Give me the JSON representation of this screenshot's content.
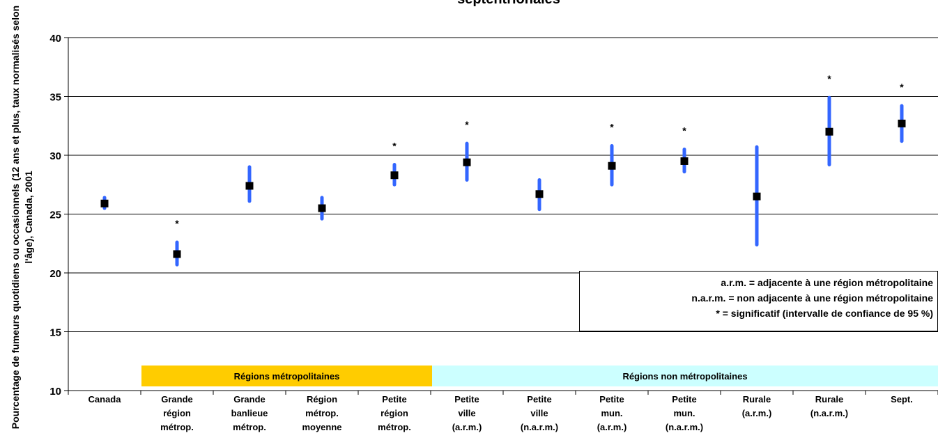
{
  "title": "septentrionales",
  "y_axis_label": "Pourcentage de fumeurs quotidiens ou occasionnels (12 ans et plus, taux normalisés selon l'âge), Canada, 2001",
  "legend_notes": [
    "a.r.m. = adjacente à une région métropolitaine",
    "n.a.r.m. = non adjacente à une région métropolitaine",
    "* = significatif (intervalle de confiance de 95 %)"
  ],
  "bands": [
    {
      "label": "Régions métropolitaines",
      "color": "#FFCC00"
    },
    {
      "label": "Régions non métropolitaines",
      "color": "#CCFFFF"
    }
  ],
  "colors": {
    "error_bar": "#3366FF",
    "marker": "#000000",
    "gridline": "#000000"
  },
  "chart_data": {
    "type": "scatter",
    "x_tick_labels": [
      [
        "Canada"
      ],
      [
        "Grande",
        "région",
        "métrop."
      ],
      [
        "Grande",
        "banlieue",
        "métrop."
      ],
      [
        "Région",
        "métrop.",
        "moyenne"
      ],
      [
        "Petite",
        "région",
        "métrop."
      ],
      [
        "Petite",
        "ville",
        "(a.r.m.)"
      ],
      [
        "Petite",
        "ville",
        "(n.a.r.m.)"
      ],
      [
        "Petite",
        "mun.",
        "(a.r.m.)"
      ],
      [
        "Petite",
        "mun.",
        "(n.a.r.m.)"
      ],
      [
        "Rurale",
        "(a.r.m.)"
      ],
      [
        "Rurale",
        "(n.a.r.m.)"
      ],
      [
        "Sept."
      ]
    ],
    "values": [
      25.9,
      21.6,
      27.4,
      25.5,
      28.3,
      29.4,
      26.7,
      29.1,
      29.5,
      26.5,
      32.0,
      32.7
    ],
    "ci_low": [
      25.5,
      20.7,
      26.1,
      24.6,
      27.5,
      27.9,
      25.4,
      27.5,
      28.6,
      22.4,
      29.2,
      31.2
    ],
    "ci_high": [
      26.4,
      22.6,
      29.0,
      26.4,
      29.2,
      31.0,
      27.9,
      30.8,
      30.5,
      30.7,
      34.9,
      34.2
    ],
    "significant": [
      false,
      true,
      false,
      false,
      true,
      true,
      false,
      true,
      true,
      false,
      true,
      true
    ],
    "significance_marker": "*",
    "ylim": [
      10,
      40
    ],
    "yticks": [
      10,
      15,
      20,
      25,
      30,
      35,
      40
    ],
    "grid": true
  }
}
